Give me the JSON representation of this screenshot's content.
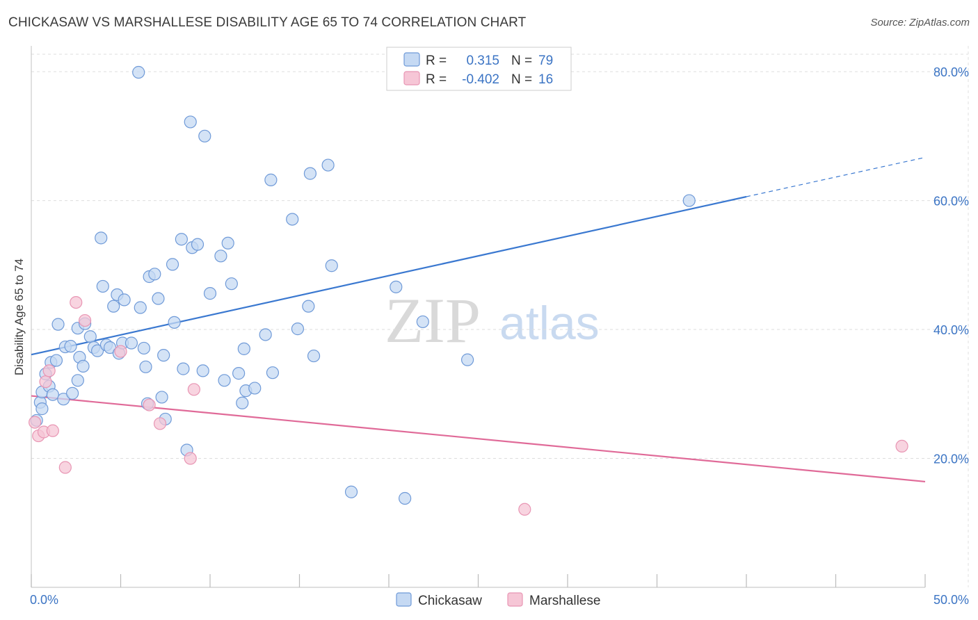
{
  "header": {
    "title": "CHICKASAW VS MARSHALLESE DISABILITY AGE 65 TO 74 CORRELATION CHART",
    "source": "Source: ZipAtlas.com"
  },
  "watermark": {
    "zip": "ZIP",
    "atlas": "atlas"
  },
  "colors": {
    "blue": "#3a78d0",
    "blue_fill": "#c5d9f3",
    "blue_stroke": "#6f9ad8",
    "pink": "#e06a98",
    "pink_fill": "#f6c6d6",
    "pink_stroke": "#e895b3",
    "tick_text": "#3b74c4",
    "grid": "#dddddd"
  },
  "legend": {
    "rows": [
      {
        "r_label": "R =",
        "r_value": "0.315",
        "n_label": "N =",
        "n_value": "79"
      },
      {
        "r_label": "R =",
        "r_value": "-0.402",
        "n_label": "N =",
        "n_value": "16"
      }
    ]
  },
  "bottom_legend": [
    "Chickasaw",
    "Marshallese"
  ],
  "chart_data": {
    "type": "scatter",
    "title": "CHICKASAW VS MARSHALLESE DISABILITY AGE 65 TO 74 CORRELATION CHART",
    "xlabel": "",
    "ylabel": "Disability Age 65 to 74",
    "xlim": [
      0,
      50
    ],
    "ylim": [
      0,
      84
    ],
    "x_tick_labels": [
      "0.0%",
      "50.0%"
    ],
    "y_ticks": [
      20,
      40,
      60,
      80
    ],
    "y_tick_labels": [
      "20.0%",
      "40.0%",
      "60.0%",
      "80.0%"
    ],
    "grid": true,
    "legend_position": "top-center",
    "series": [
      {
        "name": "Chickasaw",
        "color": "#3a78d0",
        "r": "0.315",
        "n": "79",
        "trend": {
          "x0": 0,
          "y0": 36.1,
          "x1": 40,
          "y1": 60.6,
          "dash_to_x": 50,
          "dash_to_y": 66.7
        },
        "points": [
          [
            0.3,
            25.9
          ],
          [
            0.5,
            28.7
          ],
          [
            0.6,
            30.3
          ],
          [
            0.8,
            33.1
          ],
          [
            1.0,
            31.2
          ],
          [
            1.1,
            34.9
          ],
          [
            1.2,
            29.9
          ],
          [
            1.4,
            35.2
          ],
          [
            1.5,
            40.8
          ],
          [
            1.8,
            29.2
          ],
          [
            1.9,
            37.3
          ],
          [
            2.2,
            37.4
          ],
          [
            2.3,
            30.1
          ],
          [
            2.6,
            40.2
          ],
          [
            2.7,
            35.7
          ],
          [
            2.9,
            34.3
          ],
          [
            3.0,
            40.9
          ],
          [
            3.3,
            38.9
          ],
          [
            3.5,
            37.2
          ],
          [
            3.7,
            36.7
          ],
          [
            3.9,
            54.2
          ],
          [
            4.0,
            46.7
          ],
          [
            4.2,
            37.6
          ],
          [
            4.4,
            37.2
          ],
          [
            4.6,
            43.6
          ],
          [
            4.8,
            45.4
          ],
          [
            4.9,
            36.3
          ],
          [
            5.1,
            37.9
          ],
          [
            5.2,
            44.6
          ],
          [
            5.6,
            37.9
          ],
          [
            6.0,
            79.9
          ],
          [
            6.1,
            43.4
          ],
          [
            6.3,
            37.1
          ],
          [
            6.4,
            34.2
          ],
          [
            6.5,
            28.5
          ],
          [
            6.6,
            48.2
          ],
          [
            6.9,
            48.6
          ],
          [
            7.1,
            44.8
          ],
          [
            7.3,
            29.5
          ],
          [
            7.4,
            36.0
          ],
          [
            7.5,
            26.1
          ],
          [
            7.9,
            50.1
          ],
          [
            8.0,
            41.1
          ],
          [
            8.4,
            54.0
          ],
          [
            8.5,
            33.9
          ],
          [
            8.7,
            21.3
          ],
          [
            8.9,
            72.2
          ],
          [
            9.0,
            52.7
          ],
          [
            9.3,
            53.2
          ],
          [
            9.6,
            33.6
          ],
          [
            9.7,
            70.0
          ],
          [
            10.0,
            45.6
          ],
          [
            10.6,
            51.4
          ],
          [
            10.8,
            32.1
          ],
          [
            11.0,
            53.4
          ],
          [
            11.2,
            47.1
          ],
          [
            11.6,
            33.2
          ],
          [
            11.8,
            28.6
          ],
          [
            11.9,
            37.0
          ],
          [
            12.0,
            30.5
          ],
          [
            12.5,
            30.9
          ],
          [
            13.1,
            39.2
          ],
          [
            13.4,
            63.2
          ],
          [
            13.5,
            33.3
          ],
          [
            14.6,
            57.1
          ],
          [
            14.9,
            40.1
          ],
          [
            15.5,
            43.6
          ],
          [
            15.6,
            64.2
          ],
          [
            15.8,
            35.9
          ],
          [
            16.6,
            65.5
          ],
          [
            16.8,
            49.9
          ],
          [
            17.9,
            14.8
          ],
          [
            20.4,
            46.6
          ],
          [
            20.9,
            13.8
          ],
          [
            21.9,
            41.2
          ],
          [
            24.4,
            35.3
          ],
          [
            0.6,
            27.7
          ],
          [
            2.6,
            32.1
          ],
          [
            36.8,
            60.0
          ]
        ]
      },
      {
        "name": "Marshallese",
        "color": "#e06a98",
        "r": "-0.402",
        "n": "16",
        "trend": {
          "x0": 0,
          "y0": 29.7,
          "x1": 50,
          "y1": 16.4
        },
        "points": [
          [
            0.2,
            25.6
          ],
          [
            0.4,
            23.5
          ],
          [
            0.7,
            24.1
          ],
          [
            0.8,
            31.9
          ],
          [
            1.0,
            33.6
          ],
          [
            1.2,
            24.3
          ],
          [
            1.9,
            18.6
          ],
          [
            2.5,
            44.2
          ],
          [
            3.0,
            41.4
          ],
          [
            5.0,
            36.6
          ],
          [
            6.6,
            28.3
          ],
          [
            7.2,
            25.4
          ],
          [
            8.9,
            20.0
          ],
          [
            9.1,
            30.7
          ],
          [
            27.6,
            12.1
          ],
          [
            48.7,
            21.9
          ]
        ]
      }
    ]
  }
}
